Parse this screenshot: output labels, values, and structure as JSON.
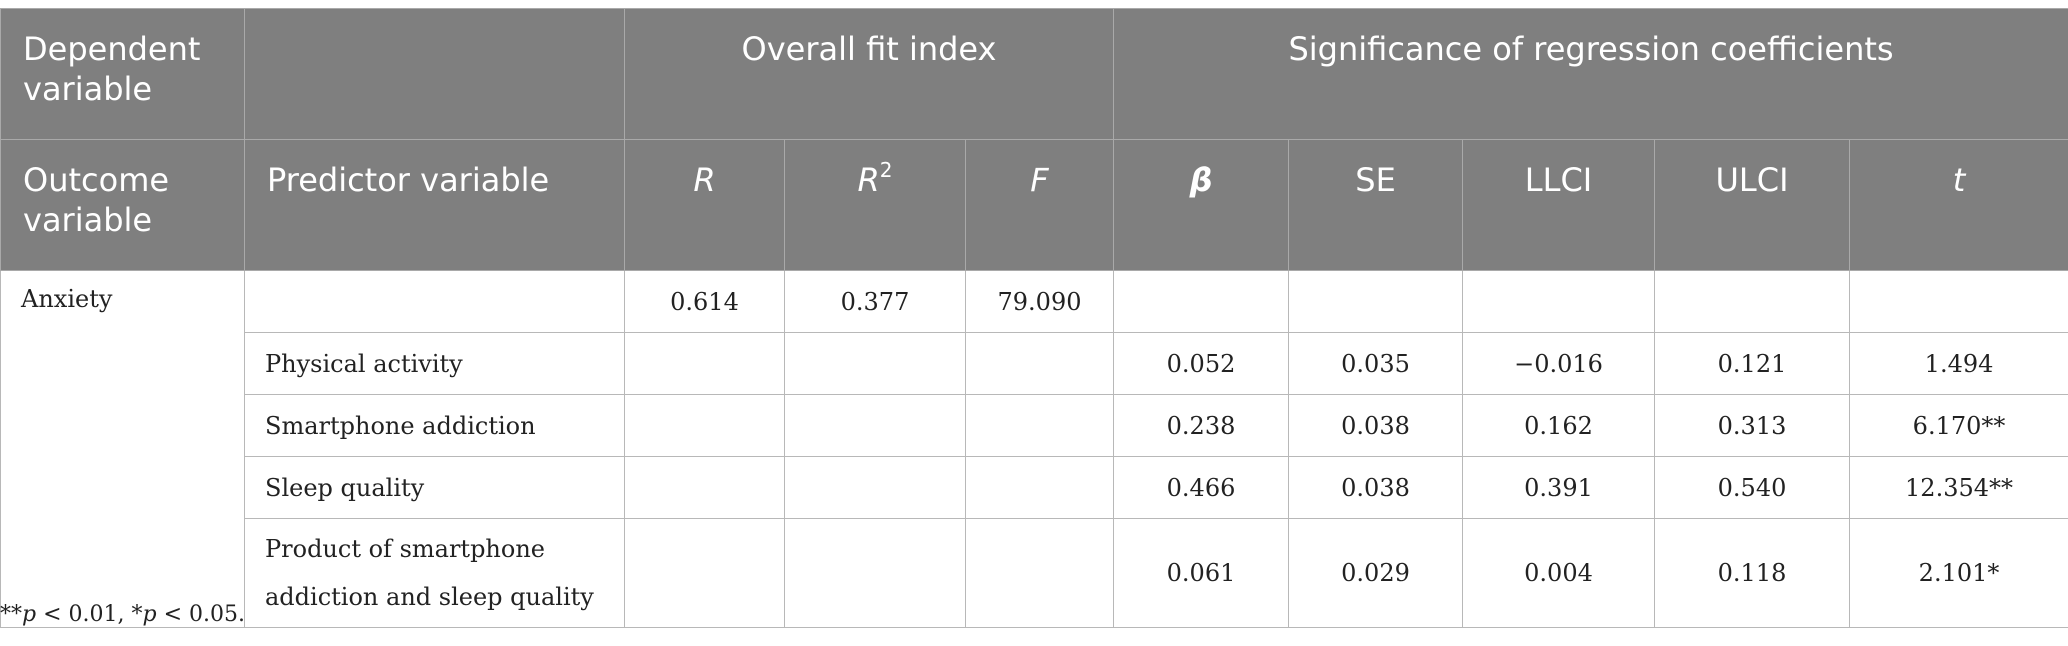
{
  "header": {
    "dependent_variable": "Dependent variable",
    "overall_fit_index": "Overall fit index",
    "significance": "Significance of regression coefficients",
    "outcome_variable": "Outcome variable",
    "predictor_variable": "Predictor variable",
    "col_R": "R",
    "col_R2_base": "R",
    "col_R2_sup": "2",
    "col_F": "F",
    "col_beta": "β",
    "col_SE": "SE",
    "col_LLCI": "LLCI",
    "col_ULCI": "ULCI",
    "col_t": "t"
  },
  "outcome": "Anxiety",
  "fit": {
    "R": "0.614",
    "R2": "0.377",
    "F": "79.090"
  },
  "rows": [
    {
      "predictor": "Physical activity",
      "beta": "0.052",
      "se": "0.035",
      "llci": "−0.016",
      "ulci": "0.121",
      "t": "1.494"
    },
    {
      "predictor": "Smartphone addiction",
      "beta": "0.238",
      "se": "0.038",
      "llci": "0.162",
      "ulci": "0.313",
      "t": "6.170**"
    },
    {
      "predictor": "Sleep quality",
      "beta": "0.466",
      "se": "0.038",
      "llci": "0.391",
      "ulci": "0.540",
      "t": "12.354**"
    },
    {
      "predictor_line1": "Product of smartphone",
      "predictor_line2": "addiction and sleep quality",
      "beta": "0.061",
      "se": "0.029",
      "llci": "0.004",
      "ulci": "0.118",
      "t": "2.101*"
    }
  ],
  "footnote": {
    "a_stars": "**",
    "a_p": "p",
    "a_rest": " < 0.01, ",
    "b_stars": "*",
    "b_p": "p",
    "b_rest": " < 0.05."
  }
}
